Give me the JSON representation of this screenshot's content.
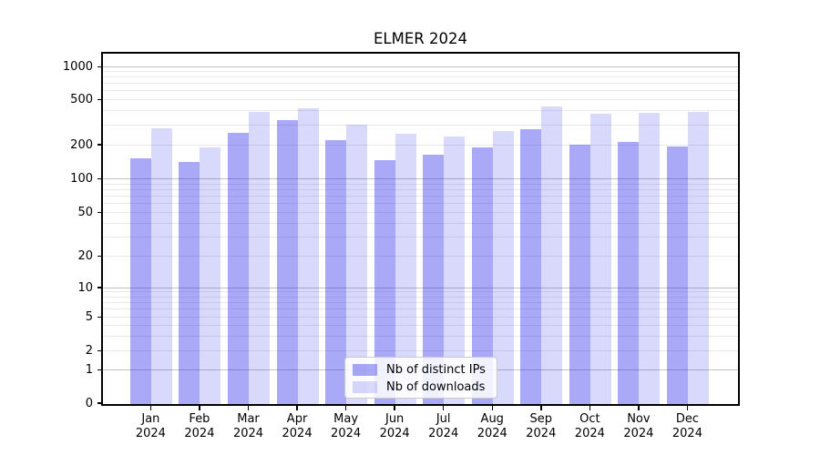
{
  "title": "ELMER 2024",
  "legend": {
    "items": [
      {
        "label": "Nb of distinct IPs",
        "color": "rgba(30,30,235,0.38)"
      },
      {
        "label": "Nb of downloads",
        "color": "rgba(30,30,235,0.17)"
      }
    ]
  },
  "y_axis": {
    "ticks": [
      {
        "value": 1000,
        "label": "1000"
      },
      {
        "value": 500,
        "label": "500"
      },
      {
        "value": 200,
        "label": "200"
      },
      {
        "value": 100,
        "label": "100"
      },
      {
        "value": 50,
        "label": "50"
      },
      {
        "value": 20,
        "label": "20"
      },
      {
        "value": 10,
        "label": "10"
      },
      {
        "value": 5,
        "label": "5"
      },
      {
        "value": 2,
        "label": "2"
      },
      {
        "value": 1,
        "label": "1"
      },
      {
        "value": 0,
        "label": "0"
      }
    ]
  },
  "x_axis": {
    "months": [
      "Jan",
      "Feb",
      "Mar",
      "Apr",
      "May",
      "Jun",
      "Jul",
      "Aug",
      "Sep",
      "Oct",
      "Nov",
      "Dec"
    ],
    "year": "2024"
  },
  "chart_data": {
    "type": "bar",
    "title": "ELMER 2024",
    "categories": [
      "Jan 2024",
      "Feb 2024",
      "Mar 2024",
      "Apr 2024",
      "May 2024",
      "Jun 2024",
      "Jul 2024",
      "Aug 2024",
      "Sep 2024",
      "Oct 2024",
      "Nov 2024",
      "Dec 2024"
    ],
    "series": [
      {
        "name": "Nb of distinct IPs",
        "color": "rgba(30,30,235,0.38)",
        "values": [
          152,
          140,
          255,
          330,
          220,
          146,
          162,
          190,
          275,
          200,
          210,
          193
        ]
      },
      {
        "name": "Nb of downloads",
        "color": "rgba(30,30,235,0.17)",
        "values": [
          280,
          190,
          385,
          420,
          300,
          250,
          235,
          265,
          435,
          375,
          380,
          385
        ]
      }
    ],
    "yscale": "symlog",
    "y_ticks": [
      0,
      1,
      2,
      5,
      10,
      20,
      50,
      100,
      200,
      500,
      1000
    ],
    "ylim": [
      0,
      1300
    ],
    "grid": true,
    "legend_position": "lower center"
  }
}
